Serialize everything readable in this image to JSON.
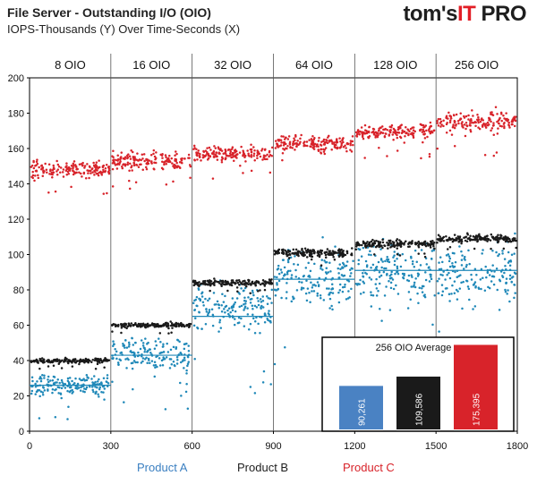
{
  "header": {
    "title": "File Server - Outstanding I/O (OIO)",
    "subtitle": "IOPS-Thousands (Y) Over Time-Seconds (X)"
  },
  "logo": {
    "main_text": "tom's",
    "accent_text": "IT",
    "tail_text": " PRO"
  },
  "colors": {
    "product_a": "#1f88b8",
    "product_b": "#1a1a1a",
    "product_c": "#d8232a",
    "inset_a": "#4a82c3"
  },
  "chart_data": {
    "type": "scatter",
    "title": "File Server - Outstanding I/O (OIO)",
    "subtitle": "IOPS-Thousands (Y) Over Time-Seconds (X)",
    "xlim": [
      0,
      1800
    ],
    "ylim": [
      0,
      200
    ],
    "x_ticks": [
      0,
      300,
      600,
      900,
      1200,
      1500,
      1800
    ],
    "y_ticks": [
      0,
      20,
      40,
      60,
      80,
      100,
      120,
      140,
      160,
      180,
      200
    ],
    "segments": [
      {
        "label": "8 OIO",
        "x_start": 0,
        "x_end": 300
      },
      {
        "label": "16 OIO",
        "x_start": 300,
        "x_end": 600
      },
      {
        "label": "32  OIO",
        "x_start": 600,
        "x_end": 900
      },
      {
        "label": "64 OIO",
        "x_start": 900,
        "x_end": 1200
      },
      {
        "label": "128 OIO",
        "x_start": 1200,
        "x_end": 1500
      },
      {
        "label": "256 OIO",
        "x_start": 1500,
        "x_end": 1800
      }
    ],
    "series": [
      {
        "name": "Product  A",
        "color": "#1f88b8",
        "segment_means": [
          26,
          44,
          69,
          87,
          90,
          90
        ],
        "segment_average_lines": [
          26,
          43,
          65,
          86,
          91,
          91
        ],
        "segment_spread": [
          5,
          8,
          12,
          14,
          15,
          15
        ]
      },
      {
        "name": "Product  B",
        "color": "#1a1a1a",
        "segment_means": [
          40,
          60,
          84,
          101,
          106,
          109
        ],
        "segment_spread": [
          1.2,
          1.2,
          1.5,
          2,
          2,
          2
        ]
      },
      {
        "name": "Product  C",
        "color": "#d8232a",
        "segment_means": [
          148,
          153,
          157,
          163,
          170,
          175
        ],
        "segment_spread": [
          4,
          4,
          4,
          4,
          4,
          5
        ]
      }
    ],
    "inset": {
      "title": "256 OIO Average",
      "bars": [
        {
          "series": "Product  A",
          "value": 90.261,
          "label": "90,261",
          "color": "#4a82c3"
        },
        {
          "series": "Product  B",
          "value": 109.586,
          "label": "109,586",
          "color": "#1a1a1a"
        },
        {
          "series": "Product  C",
          "value": 175.395,
          "label": "175,395",
          "color": "#d8232a"
        }
      ]
    },
    "legend": [
      "Product  A",
      "Product  B",
      "Product  C"
    ],
    "legend_position": "bottom",
    "grid": "vertical segment dividers"
  }
}
